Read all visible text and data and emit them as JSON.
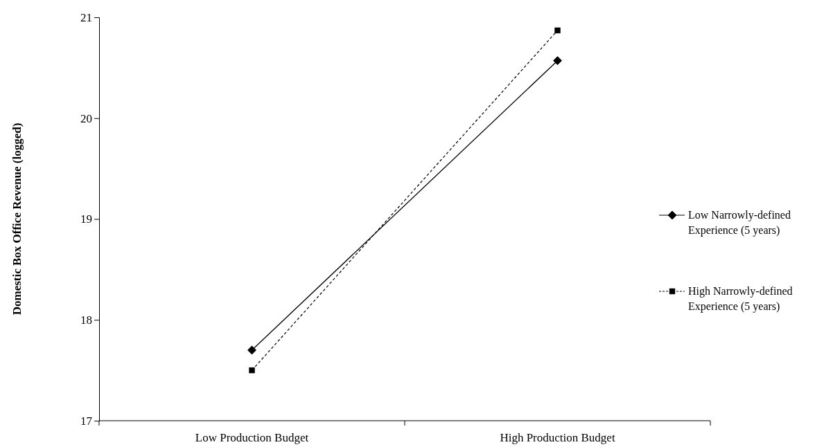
{
  "chart_data": {
    "type": "line",
    "ylabel": "Domestic Box Office Revenue (logged)",
    "categories": [
      "Low Production Budget",
      "High Production Budget"
    ],
    "ylim": [
      17,
      21
    ],
    "yticks": [
      17,
      18,
      19,
      20,
      21
    ],
    "grid": false,
    "legend": "right",
    "series": [
      {
        "name": "Low Narrowly-defined Experience (5 years)",
        "color": "#000000",
        "values": [
          17.7,
          20.57
        ],
        "marker": "diamond",
        "line_style": "solid"
      },
      {
        "name": "High Narrowly-defined Experience (5 years)",
        "color": "#000000",
        "values": [
          17.5,
          20.87
        ],
        "marker": "square",
        "line_style": "dashed"
      }
    ]
  }
}
